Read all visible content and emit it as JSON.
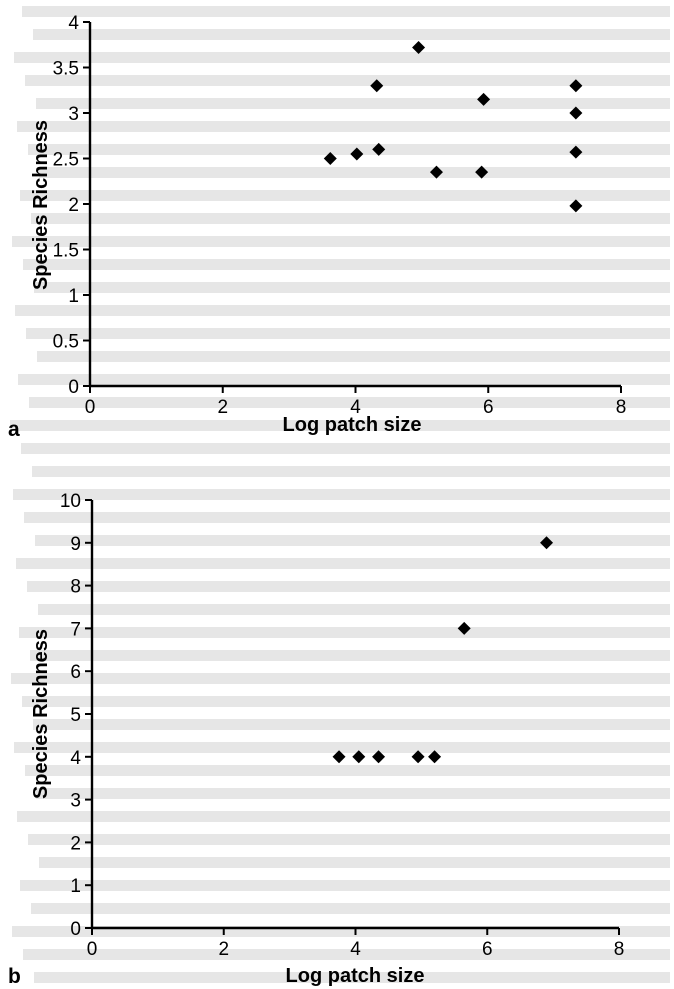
{
  "chart_data": [
    {
      "type": "scatter",
      "panel_label": "a",
      "xlabel": "Log patch size",
      "ylabel": "Species Richness",
      "xlim": [
        0,
        8
      ],
      "ylim": [
        0,
        4
      ],
      "xticks": [
        0,
        2,
        4,
        6,
        8
      ],
      "yticks": [
        0,
        0.5,
        1,
        1.5,
        2,
        2.5,
        3,
        3.5,
        4
      ],
      "grid": false,
      "points": [
        {
          "x": 3.62,
          "y": 2.5
        },
        {
          "x": 4.02,
          "y": 2.55
        },
        {
          "x": 4.32,
          "y": 3.3
        },
        {
          "x": 4.35,
          "y": 2.6
        },
        {
          "x": 4.95,
          "y": 3.72
        },
        {
          "x": 5.22,
          "y": 2.35
        },
        {
          "x": 5.9,
          "y": 2.35
        },
        {
          "x": 5.93,
          "y": 3.15
        },
        {
          "x": 7.32,
          "y": 3.3
        },
        {
          "x": 7.32,
          "y": 3.0
        },
        {
          "x": 7.32,
          "y": 2.57
        },
        {
          "x": 7.32,
          "y": 1.98
        }
      ]
    },
    {
      "type": "scatter",
      "panel_label": "b",
      "xlabel": "Log patch size",
      "ylabel": "Species Richness",
      "xlim": [
        0,
        8
      ],
      "ylim": [
        0,
        10
      ],
      "xticks": [
        0,
        2,
        4,
        6,
        8
      ],
      "yticks": [
        0,
        1,
        2,
        3,
        4,
        5,
        6,
        7,
        8,
        9,
        10
      ],
      "grid": false,
      "points": [
        {
          "x": 3.75,
          "y": 4
        },
        {
          "x": 4.05,
          "y": 4
        },
        {
          "x": 4.35,
          "y": 4
        },
        {
          "x": 4.95,
          "y": 4
        },
        {
          "x": 5.2,
          "y": 4
        },
        {
          "x": 5.65,
          "y": 7
        },
        {
          "x": 6.9,
          "y": 9
        }
      ]
    }
  ]
}
